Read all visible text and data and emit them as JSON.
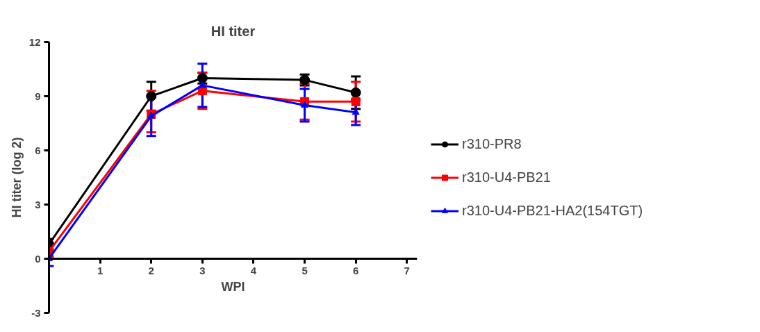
{
  "chart_data": {
    "type": "line",
    "title": "HI titer",
    "xlabel": "WPI",
    "ylabel": "HI titer (log 2)",
    "x": [
      0,
      2,
      3,
      5,
      6
    ],
    "xlim": [
      0,
      7.2
    ],
    "xticks": [
      {
        "value": 0,
        "label": null
      },
      1,
      2,
      3,
      4,
      5,
      6,
      7
    ],
    "ylim": [
      -3,
      12
    ],
    "yticks": [
      -3,
      0,
      3,
      6,
      9,
      12
    ],
    "grid": false,
    "legend": "right",
    "series": [
      {
        "name": "r310-PR8",
        "color": "#000000",
        "marker": "circle",
        "values": [
          0.8,
          9.0,
          10.0,
          9.9,
          9.2
        ],
        "errors": [
          0.3,
          0.8,
          0.3,
          0.3,
          0.9
        ]
      },
      {
        "name": "r310-U4-PB21",
        "color": "#ff0000",
        "marker": "square",
        "values": [
          0.4,
          8.0,
          9.3,
          8.7,
          8.7
        ],
        "errors": [
          0.3,
          [
            7.0,
            9.3
          ],
          1.0,
          1.0,
          1.1
        ]
      },
      {
        "name": "r310-U4-PB21-HA2(154TGT)",
        "color": "#0000ff",
        "marker": "triangle",
        "values": [
          0.0,
          7.9,
          9.6,
          8.5,
          8.1
        ],
        "errors": [
          0.4,
          1.1,
          1.2,
          0.9,
          0.7
        ]
      }
    ]
  }
}
